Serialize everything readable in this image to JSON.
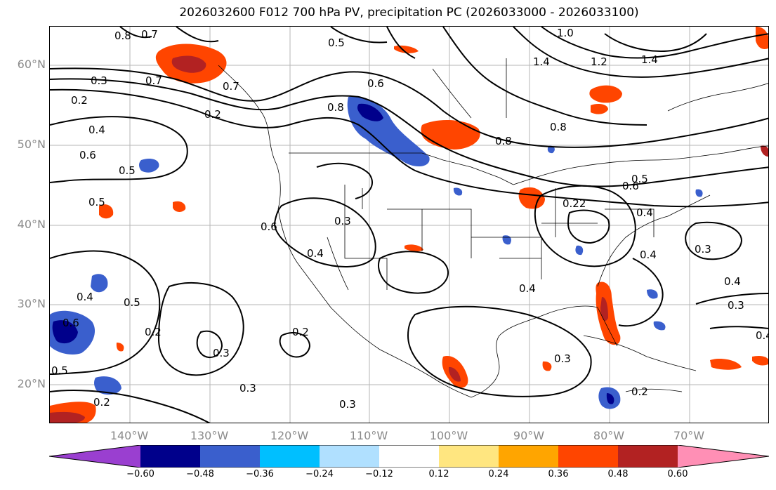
{
  "title": "2026032600 F012 700 hPa PV, precipitation PC (2026033000 - 2026033100)",
  "lat_labels": [
    "60°N",
    "50°N",
    "40°N",
    "30°N",
    "20°N"
  ],
  "lon_labels": [
    "140°W",
    "130°W",
    "120°W",
    "110°W",
    "100°W",
    "90°W",
    "80°W",
    "70°W"
  ],
  "colorbar": {
    "ticks": [
      "−0.60",
      "−0.48",
      "−0.36",
      "−0.24",
      "−0.12",
      "0.12",
      "0.24",
      "0.36",
      "0.48",
      "0.60"
    ],
    "colors": [
      "#9a3fd0",
      "#00008b",
      "#3a5fcd",
      "#00bfff",
      "#b0e0ff",
      "#ffffff",
      "#ffe680",
      "#ffa500",
      "#ff4500",
      "#b22222",
      "#ff8fb5"
    ]
  },
  "contour_labels": [
    "0.8",
    "0.7",
    "0.5",
    "1.0",
    "1.4",
    "1.2",
    "1.4",
    "0.3",
    "0.7",
    "0.7",
    "0.6",
    "0.2",
    "0.4",
    "0.6",
    "0.5",
    "0.8",
    "0.8",
    "0.8",
    "0.5",
    "0.6",
    "0.3",
    "0.4",
    "0.5",
    "0.6",
    "0.22",
    "0.4",
    "0.3",
    "0.4",
    "0.3",
    "0.4",
    "0.4",
    "0.4",
    "0.5",
    "0.2",
    "0.2",
    "0.3",
    "0.3",
    "0.2",
    "0.3",
    "0.3",
    "0.2",
    "0.4",
    "0.6",
    "0.5",
    "0.2"
  ],
  "icons": [
    "colorbar-triangle-left",
    "colorbar-triangle-right"
  ]
}
